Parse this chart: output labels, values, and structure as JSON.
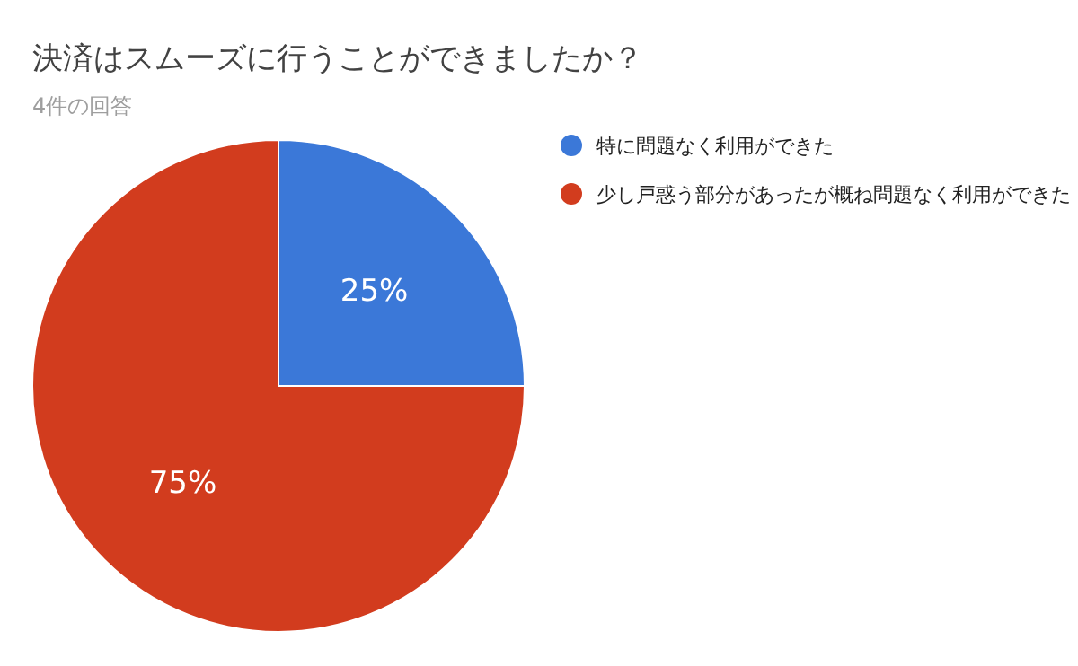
{
  "chart_data": {
    "type": "pie",
    "title": "決済はスムーズに行うことができましたか？",
    "subtitle": "4件の回答",
    "categories": [
      "特に問題なく利用ができた",
      "少し戸惑う部分があったが概ね問題なく利用ができた"
    ],
    "values": [
      25,
      75
    ],
    "value_labels": [
      "25%",
      "75%"
    ],
    "colors": [
      "#3b78d8",
      "#d23c1e"
    ],
    "legend": "right"
  }
}
